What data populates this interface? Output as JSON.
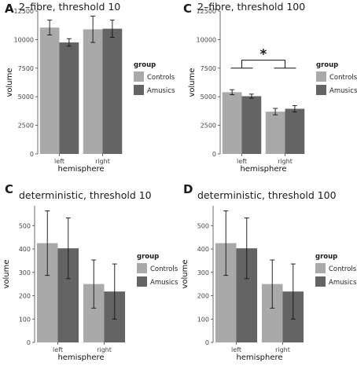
{
  "colors": {
    "controls": "#a9a9a9",
    "amusics": "#646464",
    "axis": "#444444",
    "errorbar": "#111111"
  },
  "chart_data": [
    {
      "type": "bar",
      "panel_letter": "A",
      "title": "2–fibre, threshold 10",
      "xlabel": "hemisphere",
      "ylabel": "volume",
      "ylim": [
        0,
        12500
      ],
      "yticks": [
        0,
        2500,
        5000,
        7500,
        10000,
        12500
      ],
      "ytick_labels": [
        "0",
        "2500",
        "5000",
        "7500",
        "10000",
        "12500"
      ],
      "categories": [
        "left",
        "right"
      ],
      "legend": {
        "title": "group",
        "position": "right"
      },
      "grid": false,
      "series": [
        {
          "name": "Controls",
          "values": [
            11050,
            10900
          ],
          "errors": [
            650,
            1150
          ]
        },
        {
          "name": "Amusics",
          "values": [
            9750,
            10950
          ],
          "errors": [
            330,
            750
          ]
        }
      ],
      "annotations": []
    },
    {
      "type": "bar",
      "panel_letter": "C",
      "title": "2–fibre, threshold 100",
      "xlabel": "hemisphere",
      "ylabel": "volume",
      "ylim": [
        0,
        12500
      ],
      "yticks": [
        0,
        2500,
        5000,
        7500,
        10000,
        12500
      ],
      "ytick_labels": [
        "0",
        "2500",
        "5000",
        "7500",
        "10000",
        "12500"
      ],
      "categories": [
        "left",
        "right"
      ],
      "legend": {
        "title": "group",
        "position": "right"
      },
      "grid": false,
      "series": [
        {
          "name": "Controls",
          "values": [
            5400,
            3700
          ],
          "errors": [
            220,
            280
          ]
        },
        {
          "name": "Amusics",
          "values": [
            5050,
            3950
          ],
          "errors": [
            180,
            280
          ]
        }
      ],
      "annotations": [
        {
          "text": "*",
          "kind": "significance-bracket",
          "level": 8200,
          "legs_to": 7500
        }
      ]
    },
    {
      "type": "bar",
      "panel_letter": "C",
      "title": "deterministic, threshold 10",
      "xlabel": "hemisphere",
      "ylabel": "volume",
      "ylim": [
        0,
        585
      ],
      "yticks": [
        0,
        100,
        200,
        300,
        400,
        500
      ],
      "ytick_labels": [
        "0",
        "100",
        "200",
        "300",
        "400",
        "500"
      ],
      "categories": [
        "left",
        "right"
      ],
      "legend": {
        "title": "group",
        "position": "right"
      },
      "grid": false,
      "series": [
        {
          "name": "Controls",
          "values": [
            425,
            250
          ],
          "errors": [
            138,
            103
          ]
        },
        {
          "name": "Amusics",
          "values": [
            403,
            218
          ],
          "errors": [
            130,
            118
          ]
        }
      ],
      "annotations": []
    },
    {
      "type": "bar",
      "panel_letter": "D",
      "title": "deterministic, threshold 100",
      "xlabel": "hemisphere",
      "ylabel": "volume",
      "ylim": [
        0,
        585
      ],
      "yticks": [
        0,
        100,
        200,
        300,
        400,
        500
      ],
      "ytick_labels": [
        "0",
        "100",
        "200",
        "300",
        "400",
        "500"
      ],
      "categories": [
        "left",
        "right"
      ],
      "legend": {
        "title": "group",
        "position": "right"
      },
      "grid": false,
      "series": [
        {
          "name": "Controls",
          "values": [
            425,
            250
          ],
          "errors": [
            138,
            103
          ]
        },
        {
          "name": "Amusics",
          "values": [
            403,
            218
          ],
          "errors": [
            130,
            118
          ]
        }
      ],
      "annotations": []
    }
  ]
}
